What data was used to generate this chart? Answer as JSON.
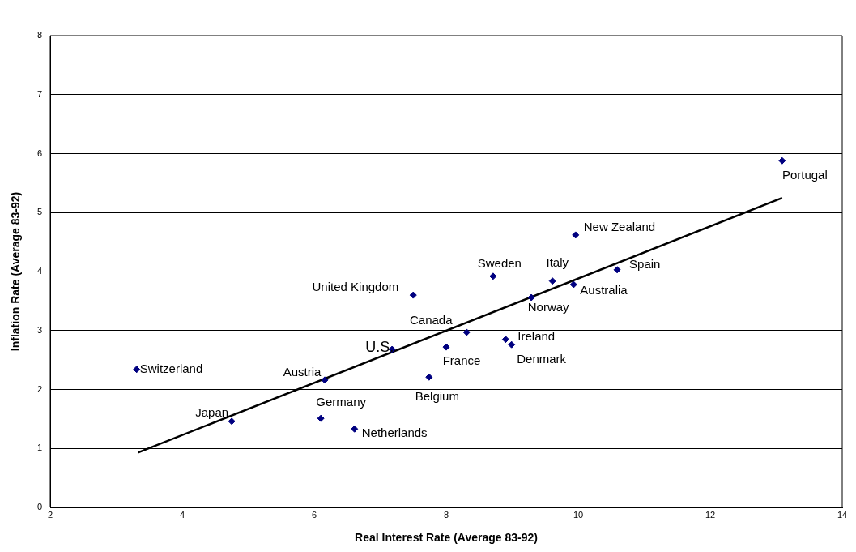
{
  "chart_data": {
    "type": "scatter",
    "xlabel": "Real Interest Rate (Average 83-92)",
    "ylabel": "Inflation Rate (Average 83-92)",
    "xlim": [
      2,
      14
    ],
    "xticks": [
      2,
      4,
      6,
      8,
      10,
      12,
      14
    ],
    "ylim": [
      0,
      8
    ],
    "yticks": [
      0,
      1,
      2,
      3,
      4,
      5,
      6,
      7,
      8
    ],
    "grid": "y",
    "legend": false,
    "series": [
      {
        "color": "#000080",
        "marker": "diamond",
        "x": [
          3.31,
          4.75,
          6.1,
          6.61,
          6.16,
          7.18,
          7.74,
          8.0,
          8.31,
          7.5,
          8.71,
          8.9,
          8.99,
          9.29,
          9.61,
          9.93,
          9.96,
          10.59,
          13.09
        ],
        "values": [
          2.34,
          1.46,
          1.51,
          1.33,
          2.16,
          2.68,
          2.21,
          2.72,
          2.97,
          3.6,
          3.92,
          2.85,
          2.76,
          3.56,
          3.84,
          3.78,
          4.62,
          4.03,
          5.88
        ]
      },
      {
        "type": "line",
        "color": "#000000",
        "marker": "none",
        "line_style": "solid",
        "x": [
          3.33,
          13.09
        ],
        "values": [
          0.93,
          5.25
        ]
      }
    ],
    "annotations": [
      {
        "text": "Switzerland",
        "x": 3.31,
        "y": 2.34
      },
      {
        "text": "Japan",
        "x": 4.75,
        "y": 1.46
      },
      {
        "text": "Germany",
        "x": 6.1,
        "y": 1.51
      },
      {
        "text": "Netherlands",
        "x": 6.61,
        "y": 1.33
      },
      {
        "text": "Austria",
        "x": 6.16,
        "y": 2.16
      },
      {
        "text": "U.S.",
        "x": 7.18,
        "y": 2.68
      },
      {
        "text": "Belgium",
        "x": 7.74,
        "y": 2.21
      },
      {
        "text": "France",
        "x": 8.0,
        "y": 2.72
      },
      {
        "text": "Canada",
        "x": 8.31,
        "y": 2.97
      },
      {
        "text": "United Kingdom",
        "x": 7.5,
        "y": 3.6
      },
      {
        "text": "Sweden",
        "x": 8.71,
        "y": 3.92
      },
      {
        "text": "Ireland",
        "x": 8.9,
        "y": 2.85
      },
      {
        "text": "Denmark",
        "x": 8.99,
        "y": 2.76
      },
      {
        "text": "Norway",
        "x": 9.29,
        "y": 3.56
      },
      {
        "text": "Italy",
        "x": 9.61,
        "y": 3.84
      },
      {
        "text": "Australia",
        "x": 9.93,
        "y": 3.78
      },
      {
        "text": "New Zealand",
        "x": 9.96,
        "y": 4.62
      },
      {
        "text": "Spain",
        "x": 10.59,
        "y": 4.03
      },
      {
        "text": "Portugal",
        "x": 13.09,
        "y": 5.88
      }
    ]
  }
}
